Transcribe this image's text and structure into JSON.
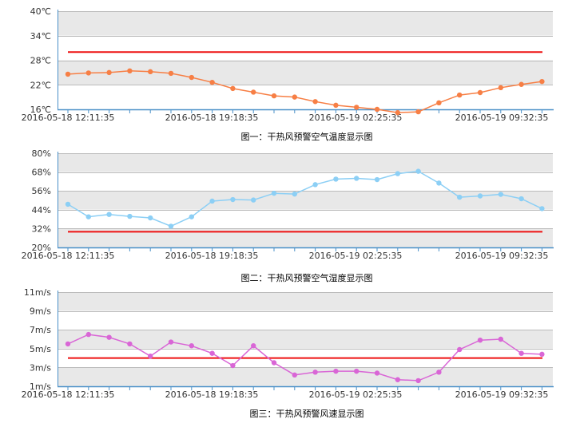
{
  "chart_data": [
    {
      "type": "line",
      "title": "图一：干热风预警空气温度显示图",
      "y_unit": "℃",
      "ylim": [
        16,
        40
      ],
      "y_ticks": [
        "40℃",
        "34℃",
        "28℃",
        "22℃",
        "16℃"
      ],
      "x_tick_labels": [
        "2016-05-18 12:11:35",
        "2016-05-18 19:18:35",
        "2016-05-19 02:25:35",
        "2016-05-19 09:32:35"
      ],
      "threshold": 30,
      "series": [
        {
          "color": "#f77f45",
          "values": [
            24.6,
            24.9,
            25.0,
            25.4,
            25.2,
            24.8,
            23.8,
            22.6,
            21.1,
            20.2,
            19.3,
            19.0,
            17.9,
            17.0,
            16.5,
            16.0,
            15.2,
            15.4,
            17.6,
            19.5,
            20.1,
            21.3,
            22.1,
            22.8
          ]
        }
      ],
      "grid": true
    },
    {
      "type": "line",
      "title": "图二：干热风预警空气湿度显示图",
      "y_unit": "%",
      "ylim": [
        20,
        80
      ],
      "y_ticks": [
        "80%",
        "68%",
        "56%",
        "44%",
        "32%",
        "20%"
      ],
      "x_tick_labels": [
        "2016-05-18 12:11:35",
        "2016-05-18 19:18:35",
        "2016-05-19 02:25:35",
        "2016-05-19 09:32:35"
      ],
      "threshold": 30,
      "series": [
        {
          "color": "#8ccff5",
          "values": [
            47.5,
            39.5,
            41,
            39.8,
            38.8,
            33.5,
            39.5,
            49.5,
            50.5,
            50.2,
            54.5,
            54.0,
            60.0,
            63.5,
            64.0,
            63.2,
            67.0,
            68.5,
            61.0,
            52.0,
            52.8,
            53.8,
            51.0,
            44.7
          ]
        }
      ],
      "grid": true
    },
    {
      "type": "line",
      "title": "图三：干热风预警风速显示图",
      "y_unit": "m/s",
      "ylim": [
        1,
        11
      ],
      "y_ticks": [
        "11m/s",
        "9m/s",
        "7m/s",
        "5m/s",
        "3m/s",
        "1m/s"
      ],
      "x_tick_labels": [
        "2016-05-18 12:11:35",
        "2016-05-18 19:18:35",
        "2016-05-19 02:25:35",
        "2016-05-19 09:32:35"
      ],
      "threshold": 4.0,
      "series": [
        {
          "color": "#d966d6",
          "values": [
            5.5,
            6.5,
            6.2,
            5.5,
            4.2,
            5.7,
            5.3,
            4.5,
            3.2,
            5.3,
            3.5,
            2.2,
            2.5,
            2.6,
            2.6,
            2.4,
            1.7,
            1.6,
            2.5,
            4.9,
            5.9,
            6.0,
            4.5,
            4.4
          ]
        }
      ],
      "grid": true
    }
  ],
  "colors": {
    "threshold": "#ee1111",
    "axis": "#4a90c8",
    "band_dark": "#e8e8e8",
    "band_light": "#ffffff",
    "grid": "#bbbbbb"
  }
}
